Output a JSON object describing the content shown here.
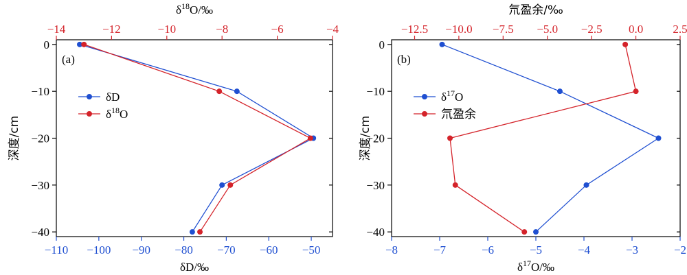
{
  "chart_data": [
    {
      "type": "line",
      "panel_label": "(a)",
      "ylabel": "深度/cm",
      "y_ticks": [
        "0",
        "−10",
        "−20",
        "−30",
        "−40"
      ],
      "y_values": [
        0,
        -10,
        -20,
        -30,
        -40
      ],
      "ylim": [
        -41,
        1
      ],
      "bottom_axis": {
        "label": "δD/‰",
        "range": [
          -110,
          -45
        ],
        "ticks": [
          -110,
          -100,
          -90,
          -80,
          -70,
          -60,
          -50
        ],
        "tick_labels": [
          "−110",
          "−100",
          "−90",
          "−80",
          "−70",
          "−60",
          "−50"
        ],
        "color": "#1f4fd1"
      },
      "top_axis": {
        "label_base": "δ",
        "label_sup": "18",
        "label_rest": "O/‰",
        "range": [
          -14,
          -4
        ],
        "ticks": [
          -14,
          -12,
          -10,
          -8,
          -6,
          -4
        ],
        "tick_labels": [
          "−14",
          "−12",
          "−10",
          "−8",
          "−6",
          "−4"
        ],
        "color": "#d4232a"
      },
      "series": [
        {
          "name": "δD",
          "name_base": "δD",
          "name_sup": "",
          "name_rest": "",
          "axis": "bottom",
          "color": "#1f4fd1",
          "depth": [
            0,
            -10,
            -20,
            -30,
            -40
          ],
          "values": [
            -104.5,
            -67.5,
            -49.5,
            -71,
            -78
          ]
        },
        {
          "name": "δ18O",
          "name_base": "δ",
          "name_sup": "18",
          "name_rest": "O",
          "axis": "top",
          "color": "#d4232a",
          "depth": [
            0,
            -10,
            -20,
            -30,
            -40
          ],
          "values": [
            -13,
            -8.1,
            -4.8,
            -7.7,
            -8.8
          ]
        }
      ]
    },
    {
      "type": "line",
      "panel_label": "(b)",
      "ylabel": "深度/cm",
      "y_ticks": [
        "0",
        "−10",
        "−20",
        "−30",
        "−40"
      ],
      "y_values": [
        0,
        -10,
        -20,
        -30,
        -40
      ],
      "ylim": [
        -41,
        1
      ],
      "bottom_axis": {
        "label_base": "δ",
        "label_sup": "17",
        "label_rest": "O/‰",
        "range": [
          -8,
          -2
        ],
        "ticks": [
          -8,
          -7,
          -6,
          -5,
          -4,
          -3,
          -2
        ],
        "tick_labels": [
          "−8",
          "−7",
          "−6",
          "−5",
          "−4",
          "−3",
          "−2"
        ],
        "color": "#1f4fd1"
      },
      "top_axis": {
        "label": "氘盈余/‰",
        "range": [
          -13.8,
          2.5
        ],
        "ticks": [
          -12.5,
          -10,
          -7.5,
          -5,
          -2.5,
          0,
          2.5
        ],
        "tick_labels": [
          "−12.5",
          "−10.0",
          "−7.5",
          "−5.0",
          "−2.5",
          "0.0",
          "2.5"
        ],
        "color": "#d4232a"
      },
      "series": [
        {
          "name": "δ17O",
          "name_base": "δ",
          "name_sup": "17",
          "name_rest": "O",
          "axis": "bottom",
          "color": "#1f4fd1",
          "depth": [
            0,
            -10,
            -20,
            -30,
            -40
          ],
          "values": [
            -6.95,
            -4.5,
            -2.45,
            -3.95,
            -5
          ]
        },
        {
          "name": "氘盈余",
          "name_base": "氘盈余",
          "name_sup": "",
          "name_rest": "",
          "axis": "top",
          "color": "#d4232a",
          "depth": [
            0,
            -10,
            -20,
            -30,
            -40
          ],
          "values": [
            -0.6,
            0,
            -10.5,
            -10.2,
            -6.3
          ]
        }
      ]
    }
  ]
}
